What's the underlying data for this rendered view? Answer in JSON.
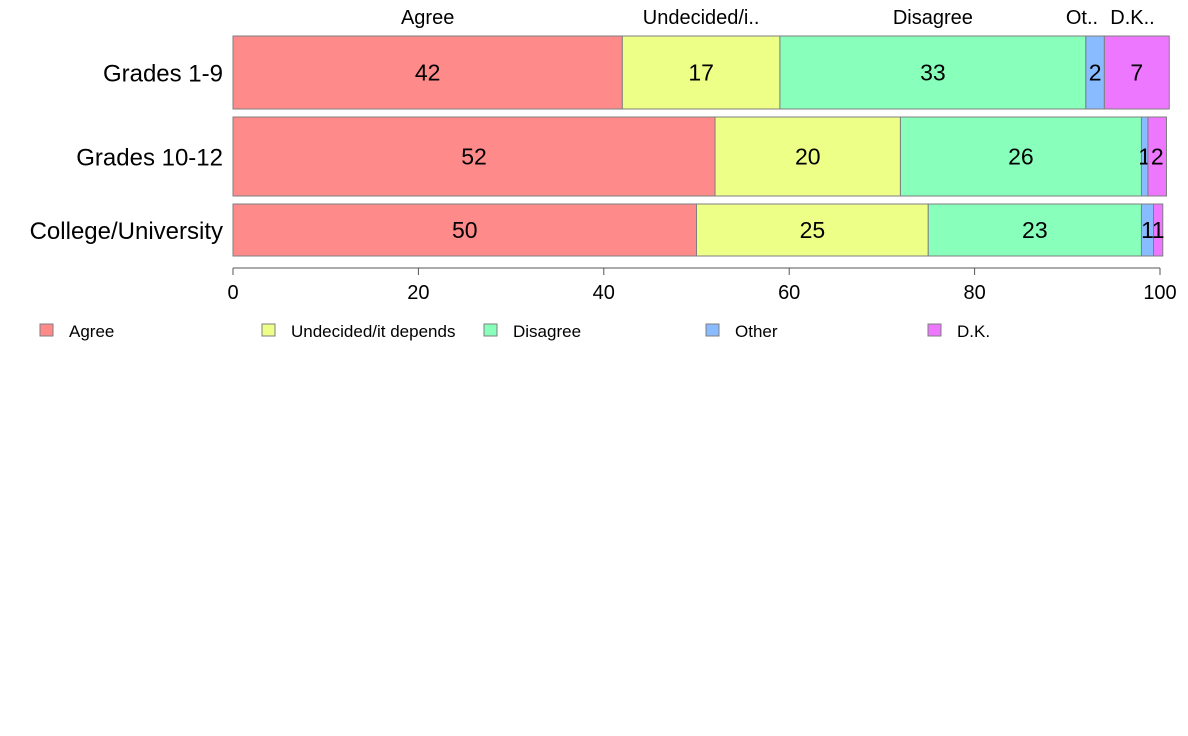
{
  "chart_data": {
    "type": "bar",
    "orientation": "horizontal",
    "stacked": true,
    "categories": [
      "Grades 1-9",
      "Grades 10-12",
      "College/University"
    ],
    "series": [
      {
        "name": "Agree",
        "color": "#ff8a8a",
        "values": [
          42,
          52,
          50
        ],
        "labels": [
          "42",
          "52",
          "50"
        ],
        "top_label": "Agree"
      },
      {
        "name": "Undecided/it depends",
        "color": "#eeff88",
        "values": [
          17,
          20,
          25
        ],
        "labels": [
          "17",
          "20",
          "25"
        ],
        "top_label": "Undecided/i.."
      },
      {
        "name": "Disagree",
        "color": "#88ffbb",
        "values": [
          33,
          26,
          23
        ],
        "labels": [
          "33",
          "26",
          "23"
        ],
        "top_label": "Disagree"
      },
      {
        "name": "Other",
        "color": "#88bbff",
        "values": [
          2,
          0.7,
          1.3
        ],
        "labels": [
          "2",
          "1",
          "1"
        ],
        "top_label": "Ot.."
      },
      {
        "name": "D.K.",
        "color": "#ee77ff",
        "values": [
          7,
          2,
          1
        ],
        "labels": [
          "7",
          "2",
          "1"
        ],
        "top_label": "D.K.."
      }
    ],
    "xlim": [
      0,
      100
    ],
    "xticks": [
      "0",
      "20",
      "40",
      "60",
      "80",
      "100"
    ],
    "grid": false,
    "legend_position": "bottom"
  }
}
